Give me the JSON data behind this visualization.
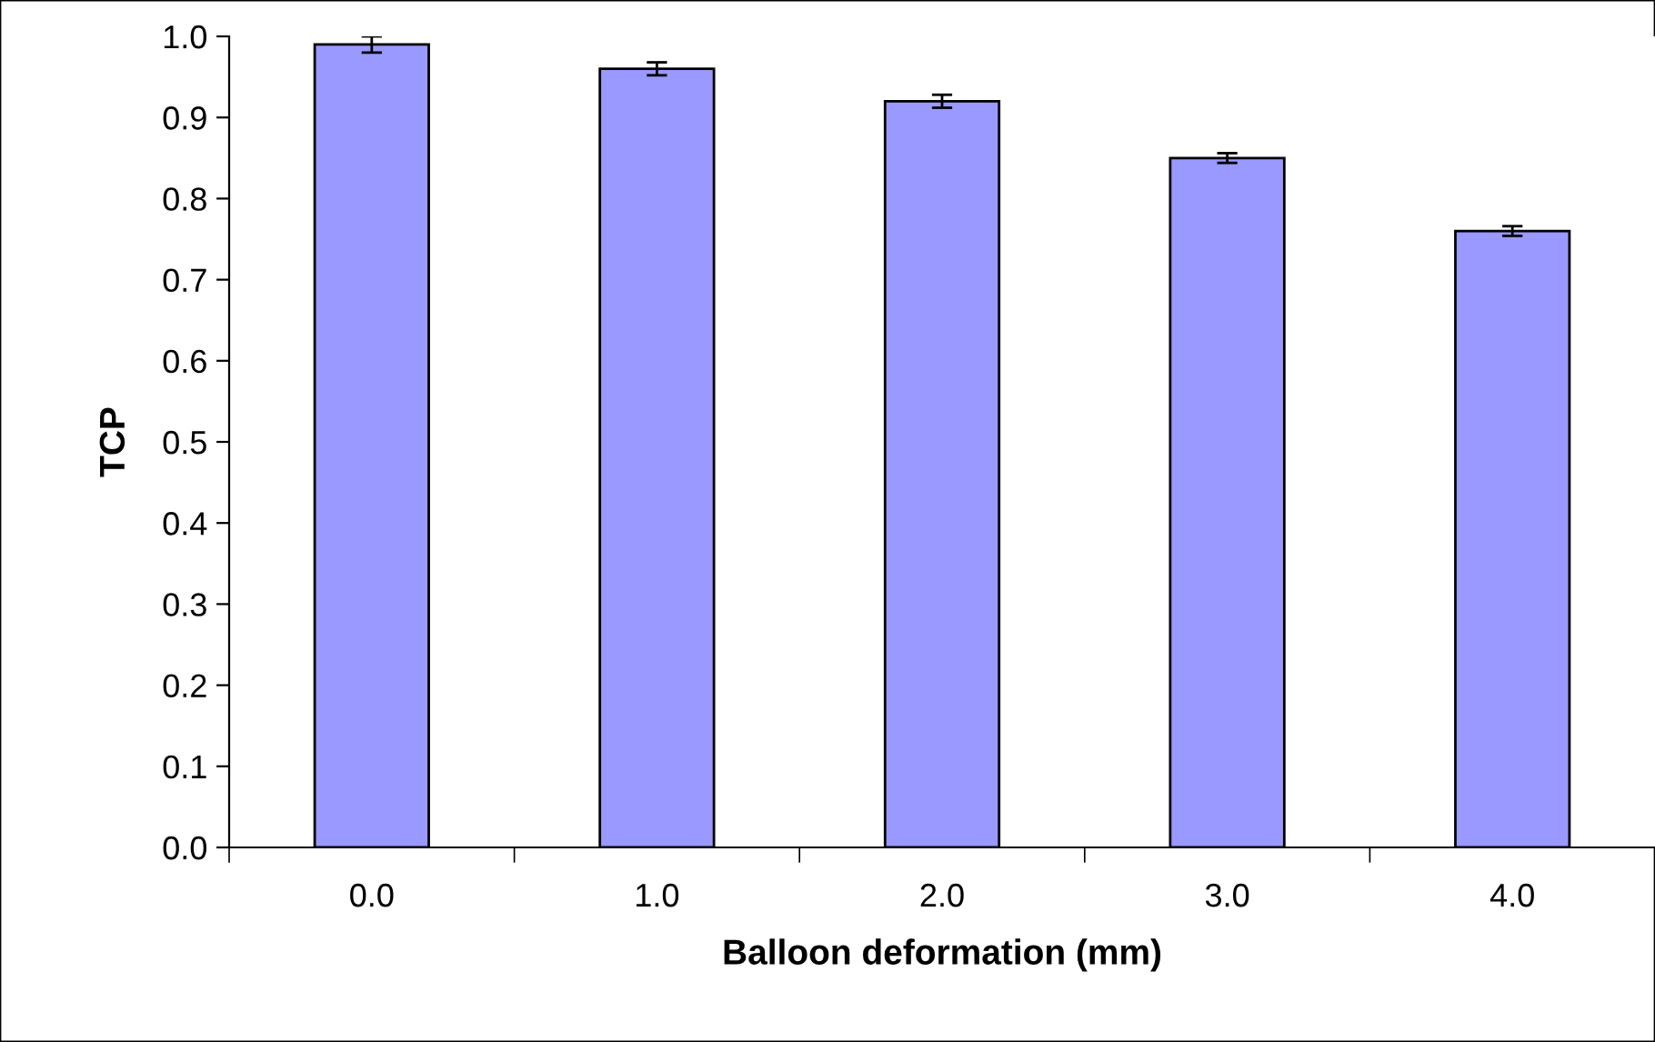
{
  "chart_data": {
    "type": "bar",
    "xlabel": "Balloon deformation (mm)",
    "ylabel": "TCP",
    "categories": [
      "0.0",
      "1.0",
      "2.0",
      "3.0",
      "4.0"
    ],
    "values": [
      0.99,
      0.96,
      0.92,
      0.85,
      0.76
    ],
    "errors": [
      0.01,
      0.008,
      0.008,
      0.006,
      0.006
    ],
    "color": "#9999ff",
    "ylim": [
      0,
      1.0
    ],
    "yticks": [
      {
        "value": 0,
        "label": "0.0"
      },
      {
        "value": 0.1,
        "label": "0.1"
      },
      {
        "value": 0.2,
        "label": "0.2"
      },
      {
        "value": 0.3,
        "label": "0.3"
      },
      {
        "value": 0.4,
        "label": "0.4"
      },
      {
        "value": 0.5,
        "label": "0.5"
      },
      {
        "value": 0.6,
        "label": "0.6"
      },
      {
        "value": 0.7,
        "label": "0.7"
      },
      {
        "value": 0.8,
        "label": "0.8"
      },
      {
        "value": 0.9,
        "label": "0.9"
      },
      {
        "value": 1.0,
        "label": "1.0"
      }
    ],
    "grid": false,
    "legend": false
  }
}
